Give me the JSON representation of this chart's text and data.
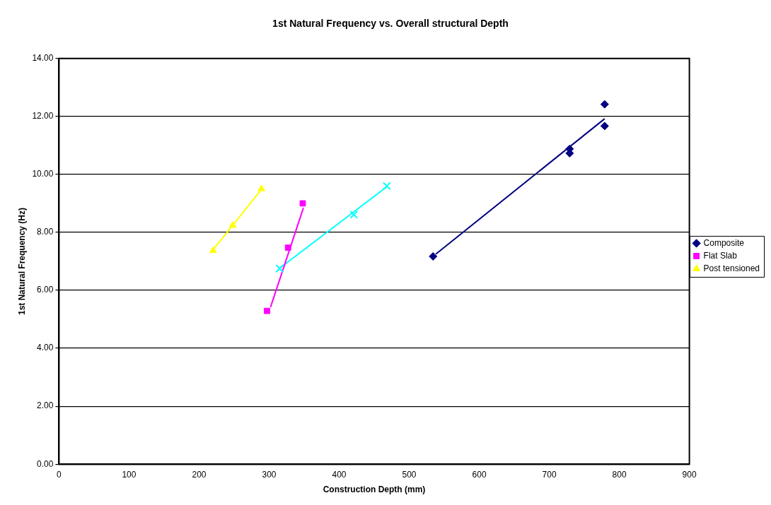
{
  "chart_data": {
    "type": "scatter",
    "title": "1st Natural Frequency vs. Overall structural Depth",
    "xlabel": "Construction Depth (mm)",
    "ylabel": "1st Natural Frequency (Hz)",
    "xlim": [
      0,
      900
    ],
    "xticks": [
      0,
      100,
      200,
      300,
      400,
      500,
      600,
      700,
      800,
      900
    ],
    "ylim": [
      0,
      14
    ],
    "yticks": [
      {
        "value": 0,
        "label": "0.00"
      },
      {
        "value": 2,
        "label": "2.00"
      },
      {
        "value": 4,
        "label": "4.00"
      },
      {
        "value": 6,
        "label": "6.00"
      },
      {
        "value": 8,
        "label": "8.00"
      },
      {
        "value": 10,
        "label": "10.00"
      },
      {
        "value": 12,
        "label": "12.00"
      },
      {
        "value": 14,
        "label": "14.00"
      }
    ],
    "grid": "y",
    "legend": "right",
    "series": [
      {
        "name": "Composite",
        "type": "scatter",
        "marker": "diamond",
        "color": "#000080",
        "x": [
          534,
          729,
          729,
          779,
          779
        ],
        "values": [
          7.17,
          10.88,
          10.73,
          12.42,
          11.67
        ]
      },
      {
        "name": "Flat Slab",
        "type": "scatter",
        "marker": "square",
        "color": "#ff00ff",
        "x": [
          297,
          327,
          348
        ],
        "values": [
          5.29,
          7.47,
          9.0
        ]
      },
      {
        "name": "Post tensioned",
        "type": "scatter",
        "marker": "triangle",
        "color": "#ffff00",
        "x": [
          220,
          248,
          289
        ],
        "values": [
          7.37,
          8.24,
          9.5
        ]
      },
      {
        "type": "scatter",
        "marker": "cross",
        "color": "#00ffff",
        "x": [
          315,
          421,
          468
        ],
        "values": [
          6.75,
          8.61,
          9.6
        ]
      },
      {
        "type": "line",
        "marker": "none",
        "line_style": "solid",
        "color": "#000080",
        "x": [
          538,
          779
        ],
        "values": [
          7.25,
          11.92
        ]
      },
      {
        "type": "line",
        "marker": "none",
        "line_style": "solid",
        "color": "#ff00ff",
        "x": [
          302,
          349
        ],
        "values": [
          5.42,
          8.85
        ]
      },
      {
        "type": "line",
        "marker": "none",
        "line_style": "solid",
        "color": "#ffff00",
        "x": [
          220,
          287
        ],
        "values": [
          7.4,
          9.42
        ]
      },
      {
        "type": "line",
        "marker": "none",
        "line_style": "solid",
        "color": "#00ffff",
        "x": [
          316,
          468
        ],
        "values": [
          6.78,
          9.57
        ]
      }
    ]
  }
}
